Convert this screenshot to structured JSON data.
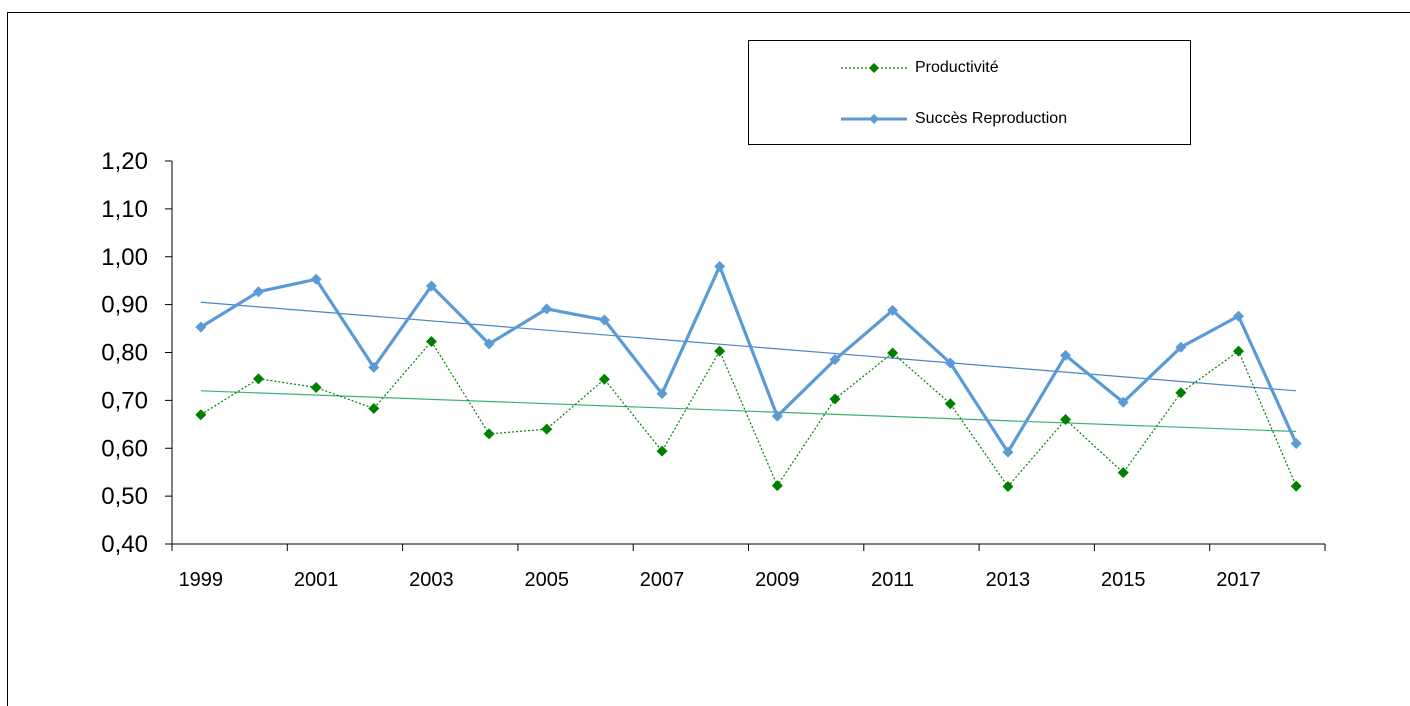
{
  "chart_data": {
    "type": "line",
    "title": "",
    "xlabel": "",
    "ylabel": "",
    "ylim": [
      0.4,
      1.2
    ],
    "y_ticks": [
      "1,20",
      "1,10",
      "1,00",
      "0,90",
      "0,80",
      "0,70",
      "0,60",
      "0,50",
      "0,40"
    ],
    "x_tick_labels": [
      "1999",
      "2001",
      "2003",
      "2005",
      "2007",
      "2009",
      "2011",
      "2013",
      "2015",
      "2017"
    ],
    "x": [
      1999,
      2000,
      2001,
      2002,
      2003,
      2004,
      2005,
      2006,
      2007,
      2008,
      2009,
      2010,
      2011,
      2012,
      2013,
      2014,
      2015,
      2016,
      2017,
      2018
    ],
    "grid": false,
    "legend": "top-right",
    "series": [
      {
        "name": "Productivité",
        "color": "#008000",
        "style": "dotted-line-diamond-markers",
        "values": [
          0.67,
          0.745,
          0.727,
          0.683,
          0.823,
          0.63,
          0.64,
          0.744,
          0.594,
          0.803,
          0.522,
          0.703,
          0.799,
          0.693,
          0.52,
          0.66,
          0.549,
          0.716,
          0.803,
          0.521
        ],
        "trendline": {
          "color": "#3cb371",
          "start": 0.72,
          "end": 0.635
        }
      },
      {
        "name": "Succès Reproduction",
        "color": "#5b9bd5",
        "style": "solid-line-diamond-markers",
        "values": [
          0.853,
          0.927,
          0.953,
          0.769,
          0.939,
          0.818,
          0.891,
          0.868,
          0.714,
          0.98,
          0.667,
          0.785,
          0.888,
          0.778,
          0.592,
          0.794,
          0.696,
          0.811,
          0.876,
          0.61
        ],
        "trendline": {
          "color": "#4a86c5",
          "start": 0.905,
          "end": 0.72
        }
      }
    ]
  }
}
